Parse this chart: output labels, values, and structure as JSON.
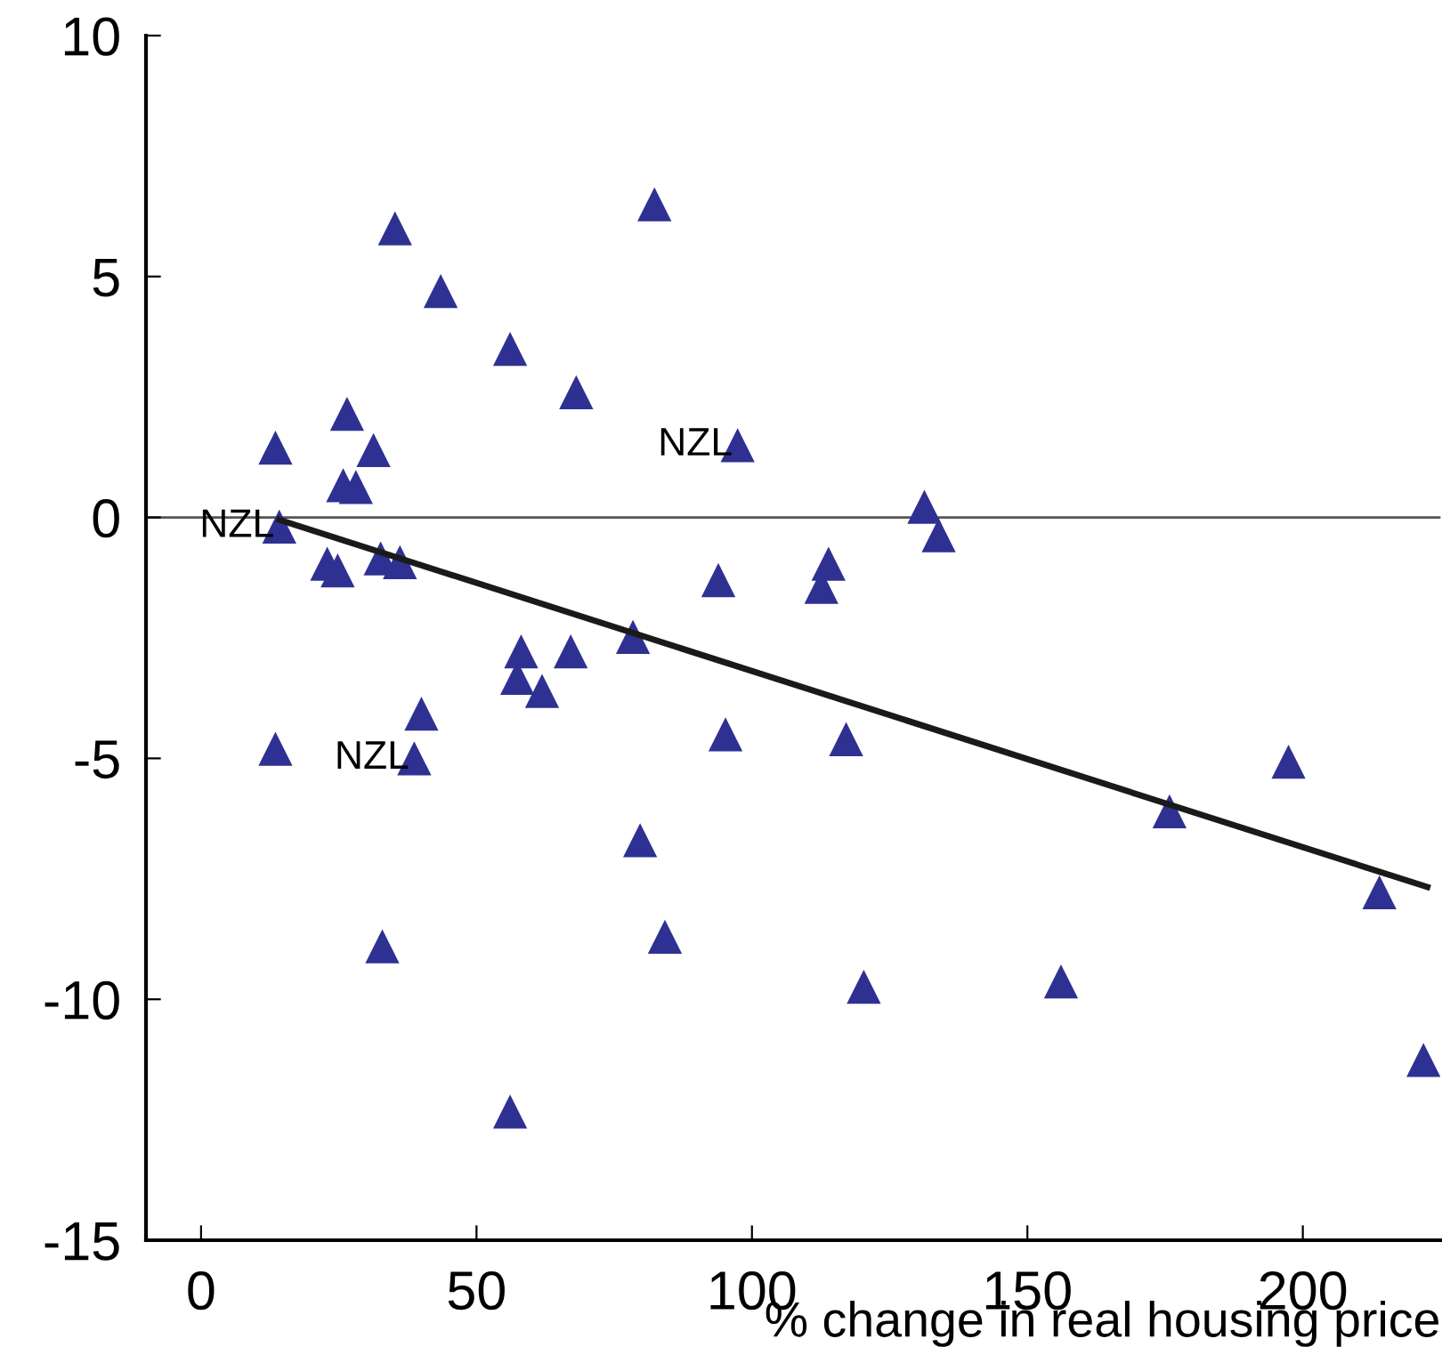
{
  "chart_data": {
    "type": "scatter",
    "xlabel": "% change in real housing price",
    "series": [
      {
        "color": "#2e3192",
        "marker": "triangle",
        "x": [
          35.2,
          82.3,
          43.5,
          56.1,
          68.1,
          97.4,
          13.5,
          26.5,
          31.3,
          25.8,
          28.1,
          131.3,
          133.9,
          14.2,
          22.9,
          24.8,
          32.6,
          36.1,
          93.9,
          113.9,
          112.6,
          58.1,
          67.1,
          78.4,
          57.4,
          61.9,
          40,
          13.5,
          38.7,
          95.2,
          117.1,
          175.8,
          197.4,
          79.7,
          84.2,
          32.9,
          120.3,
          156.1,
          213.9,
          221.9,
          56.1
        ],
        "values": [
          6.0,
          6.5,
          4.7,
          3.5,
          2.6,
          1.5,
          1.45,
          2.15,
          1.4,
          0.67,
          0.63,
          0.22,
          -0.37,
          -0.19,
          -0.96,
          -1.1,
          -0.85,
          -0.93,
          -1.3,
          -0.96,
          -1.44,
          -2.78,
          -2.78,
          -2.48,
          -3.33,
          -3.6,
          -4.07,
          -4.8,
          -5.0,
          -4.5,
          -4.6,
          -6.1,
          -5.07,
          -6.7,
          -8.7,
          -8.9,
          -9.74,
          -9.63,
          -7.78,
          -11.26,
          -12.33
        ]
      },
      {
        "type": "line",
        "color": "#1a1a1a",
        "marker": "none",
        "line_style": "solid",
        "x": [
          14.2,
          222.6
        ],
        "values": [
          -0.05,
          -7.67
        ]
      }
    ],
    "annotations": [
      {
        "text": "NZL",
        "x": 14.2,
        "y": -0.19
      },
      {
        "text": "NZL",
        "x": 97.4,
        "y": 1.5
      },
      {
        "text": "NZL",
        "x": 38.7,
        "y": -5.0
      }
    ],
    "ref_lines": [
      {
        "axis": "y",
        "value": 0,
        "color": "#555555"
      }
    ],
    "xlim": [
      -10,
      225
    ],
    "xticks": [
      0,
      50,
      100,
      150,
      200
    ],
    "ylim": [
      -15,
      10
    ],
    "yticks": [
      -15,
      -10,
      -5,
      0,
      5,
      10
    ],
    "grid": false,
    "legend": false
  }
}
